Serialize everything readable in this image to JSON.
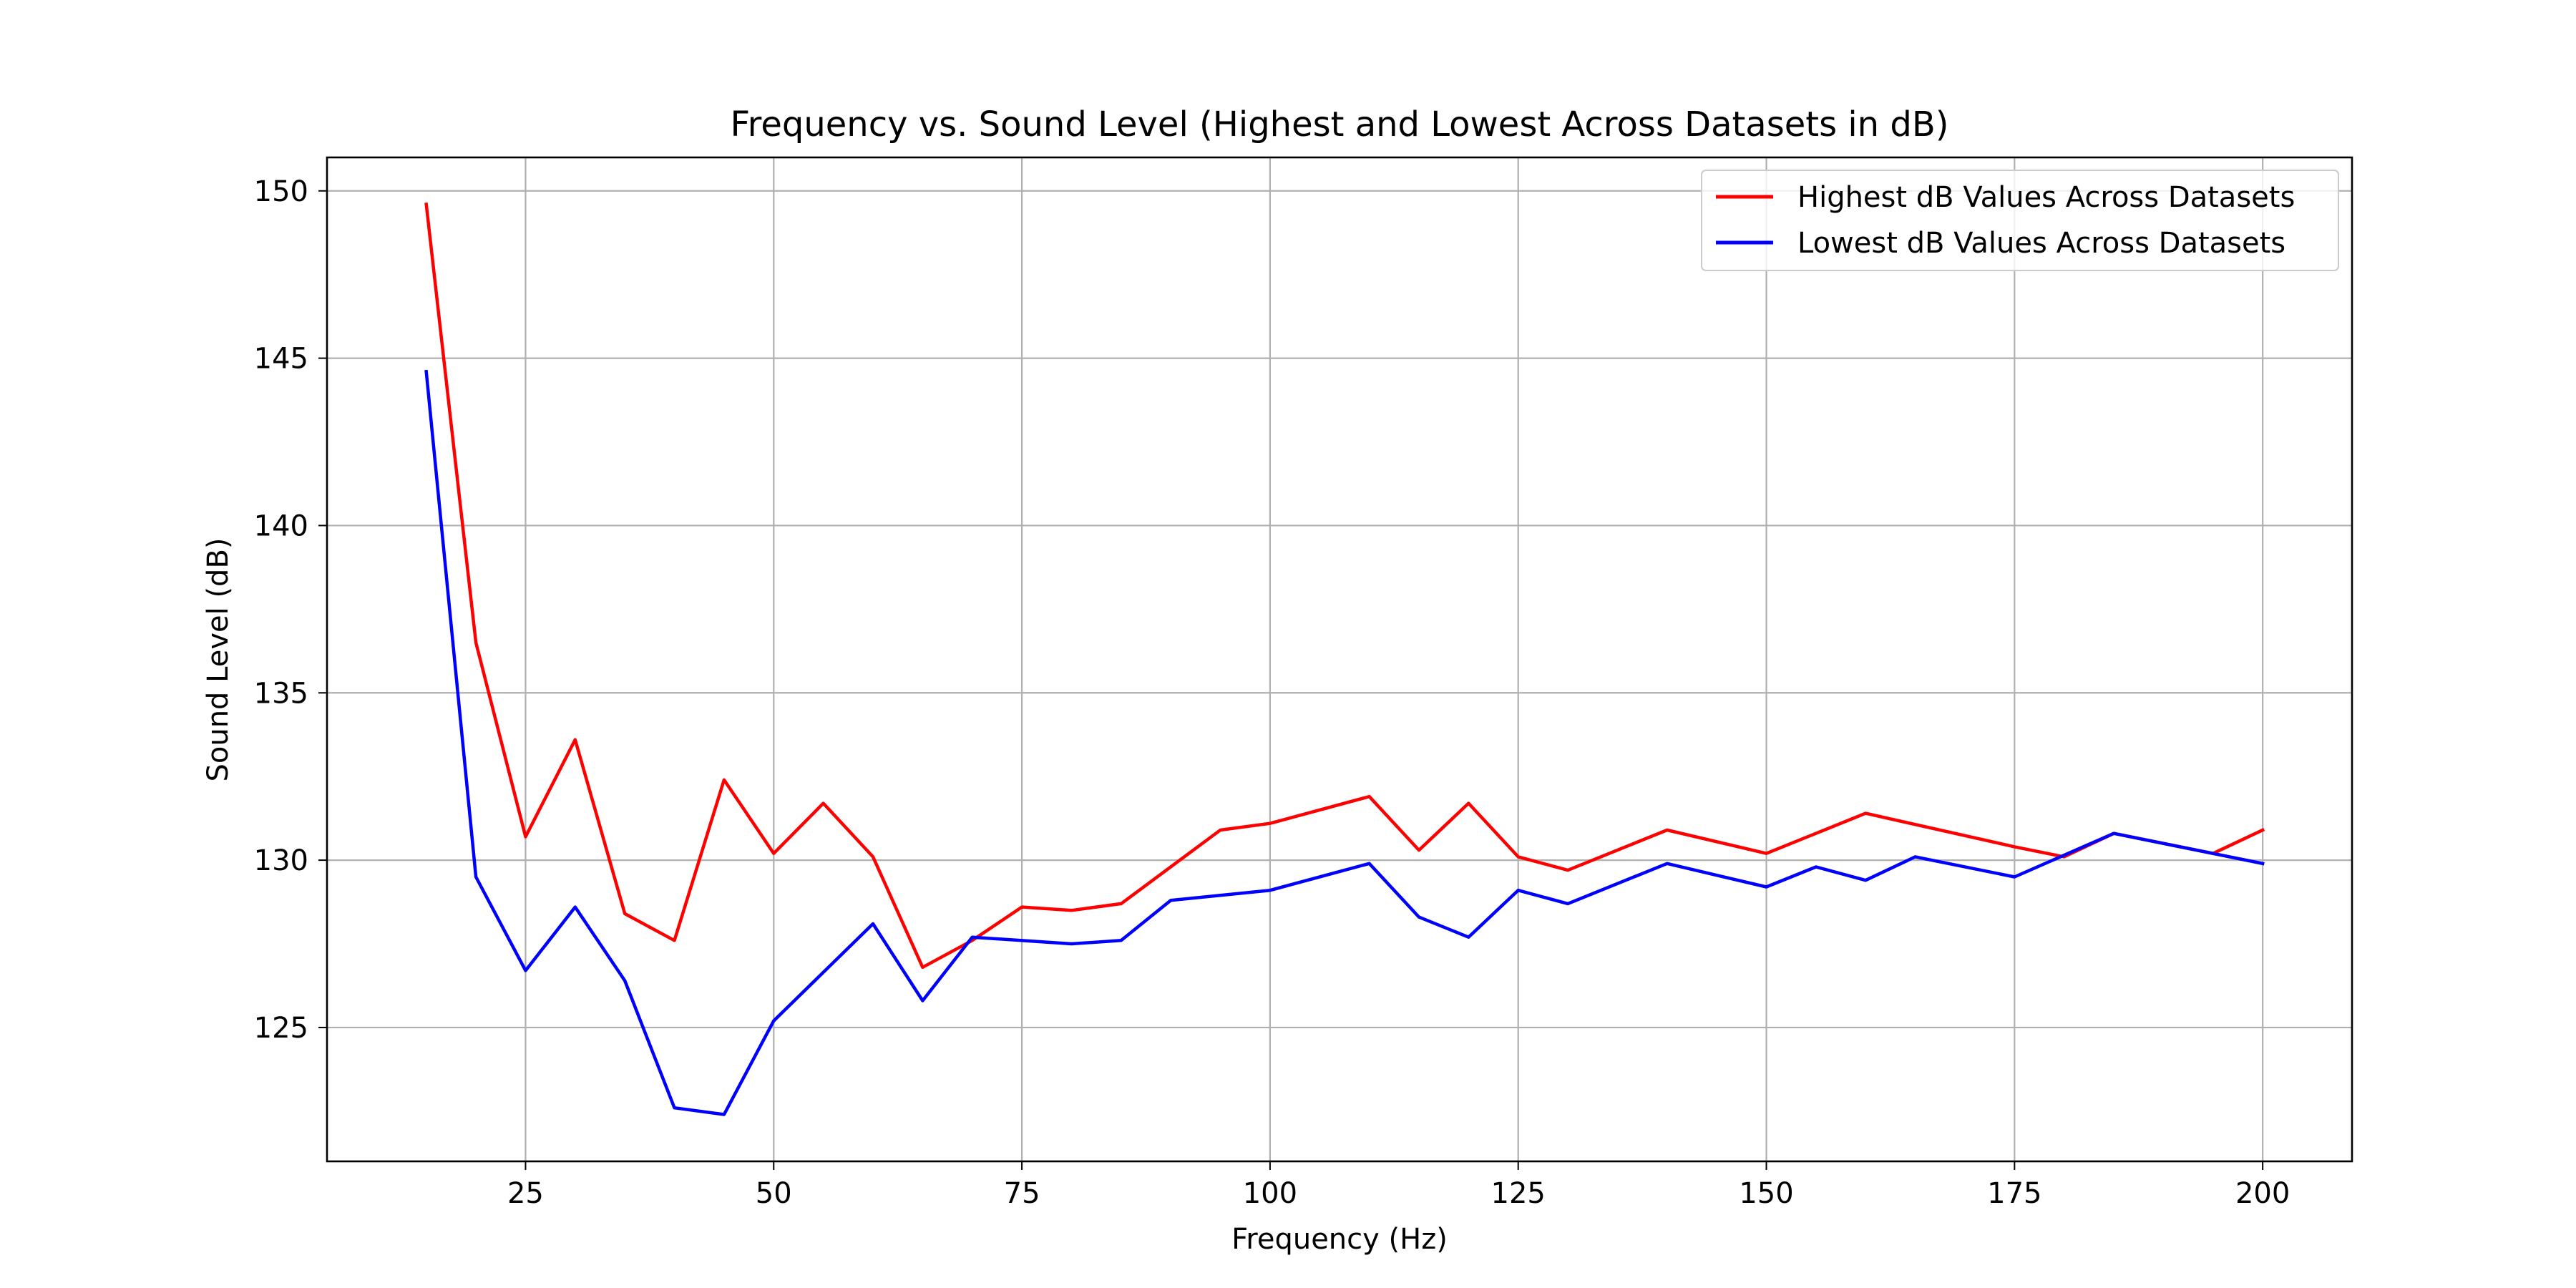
{
  "chart_data": {
    "type": "line",
    "title": "Frequency vs. Sound Level (Highest and Lowest Across Datasets in dB)",
    "xlabel": "Frequency (Hz)",
    "ylabel": "Sound Level (dB)",
    "xlim": [
      5,
      209
    ],
    "ylim": [
      121,
      151
    ],
    "xticks": [
      25,
      50,
      75,
      100,
      125,
      150,
      175,
      200
    ],
    "yticks": [
      125,
      130,
      135,
      140,
      145,
      150
    ],
    "grid": true,
    "legend_position": "top-right",
    "series": [
      {
        "name": "Highest dB Values Across Datasets",
        "color": "#ff0000",
        "points": [
          [
            15,
            149.6
          ],
          [
            20,
            136.5
          ],
          [
            25,
            130.7
          ],
          [
            30,
            133.6
          ],
          [
            35,
            128.4
          ],
          [
            40,
            127.6
          ],
          [
            45,
            132.4
          ],
          [
            50,
            130.2
          ],
          [
            55,
            131.7
          ],
          [
            60,
            130.1
          ],
          [
            65,
            126.8
          ],
          [
            70,
            127.6
          ],
          [
            75,
            128.6
          ],
          [
            80,
            128.5
          ],
          [
            85,
            128.7
          ],
          [
            95,
            130.9
          ],
          [
            100,
            131.1
          ],
          [
            110,
            131.9
          ],
          [
            115,
            130.3
          ],
          [
            120,
            131.7
          ],
          [
            125,
            130.1
          ],
          [
            130,
            129.7
          ],
          [
            140,
            130.9
          ],
          [
            150,
            130.2
          ],
          [
            160,
            131.4
          ],
          [
            175,
            130.4
          ],
          [
            180,
            130.1
          ],
          [
            185,
            130.8
          ],
          [
            195,
            130.2
          ],
          [
            200,
            130.9
          ]
        ]
      },
      {
        "name": "Lowest dB Values Across Datasets",
        "color": "#0000ff",
        "points": [
          [
            15,
            144.6
          ],
          [
            20,
            129.5
          ],
          [
            25,
            126.7
          ],
          [
            30,
            128.6
          ],
          [
            35,
            126.4
          ],
          [
            40,
            122.6
          ],
          [
            45,
            122.4
          ],
          [
            50,
            125.2
          ],
          [
            60,
            128.1
          ],
          [
            65,
            125.8
          ],
          [
            70,
            127.7
          ],
          [
            80,
            127.5
          ],
          [
            85,
            127.6
          ],
          [
            90,
            128.8
          ],
          [
            100,
            129.1
          ],
          [
            110,
            129.9
          ],
          [
            115,
            128.3
          ],
          [
            120,
            127.7
          ],
          [
            125,
            129.1
          ],
          [
            130,
            128.7
          ],
          [
            140,
            129.9
          ],
          [
            150,
            129.2
          ],
          [
            155,
            129.8
          ],
          [
            160,
            129.4
          ],
          [
            165,
            130.1
          ],
          [
            175,
            129.5
          ],
          [
            185,
            130.8
          ],
          [
            200,
            129.9
          ]
        ]
      }
    ]
  }
}
